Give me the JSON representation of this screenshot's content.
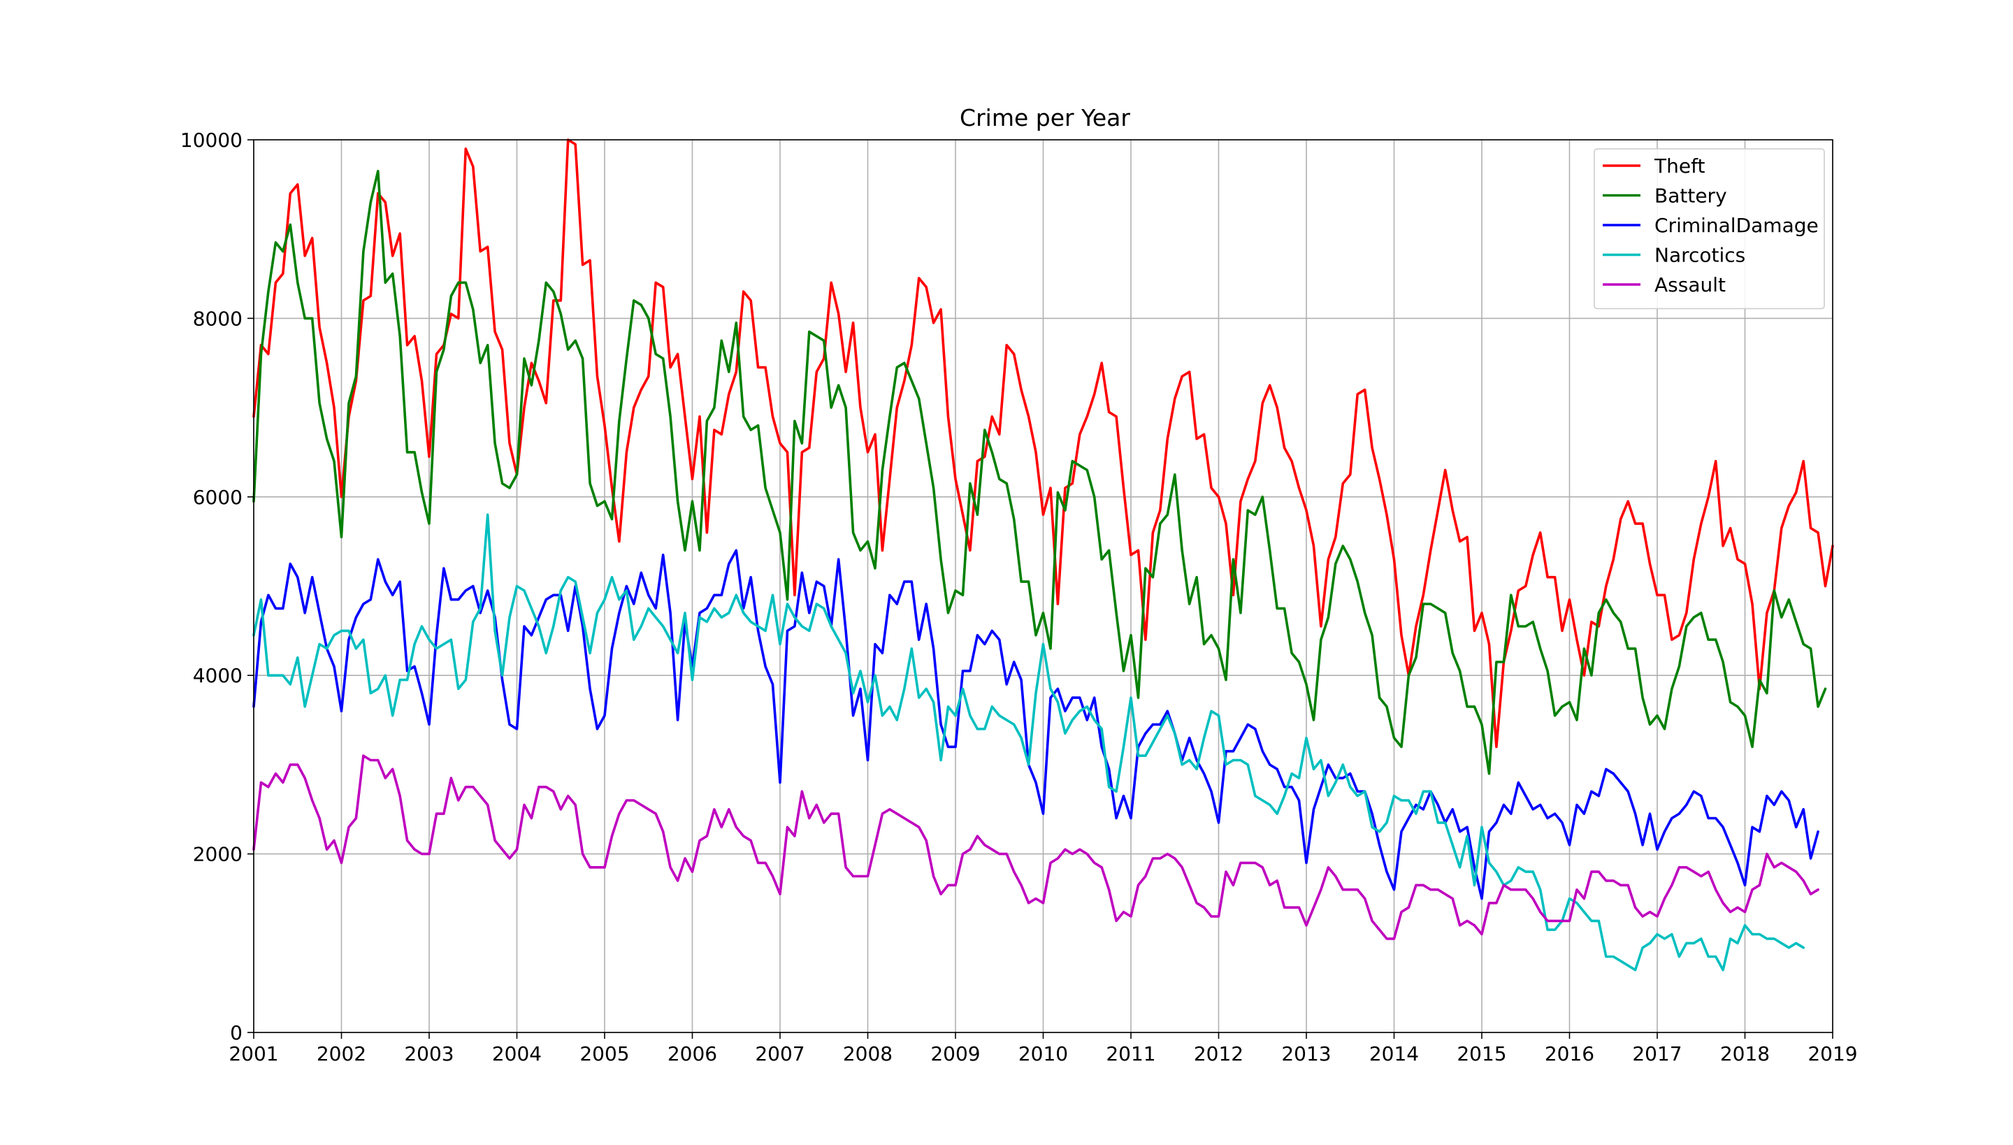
{
  "chart_data": {
    "type": "line",
    "title": "Crime per Year",
    "xlabel": "",
    "ylabel": "",
    "xlim": [
      2001,
      2019
    ],
    "ylim": [
      0,
      10000
    ],
    "x_ticks": [
      "2001",
      "2002",
      "2003",
      "2004",
      "2005",
      "2006",
      "2007",
      "2008",
      "2009",
      "2010",
      "2011",
      "2012",
      "2013",
      "2014",
      "2015",
      "2016",
      "2017",
      "2018",
      "2019"
    ],
    "y_ticks": [
      "0",
      "2000",
      "4000",
      "6000",
      "8000",
      "10000"
    ],
    "grid": true,
    "legend_position": "top-right",
    "x_start": "2001-01",
    "series": [
      {
        "name": "Theft",
        "color": "#ff0000",
        "values": [
          6900,
          7700,
          7600,
          8400,
          8500,
          9400,
          9500,
          8700,
          8900,
          7900,
          7500,
          7000,
          6000,
          6900,
          7300,
          8200,
          8250,
          9400,
          9300,
          8700,
          8950,
          7700,
          7800,
          7300,
          6450,
          7600,
          7700,
          8050,
          8000,
          9900,
          9700,
          8750,
          8800,
          7850,
          7650,
          6600,
          6250,
          7000,
          7500,
          7300,
          7050,
          8200,
          8200,
          10000,
          9950,
          8600,
          8650,
          7350,
          6800,
          6100,
          5500,
          6500,
          7000,
          7200,
          7350,
          8400,
          8350,
          7450,
          7600,
          6900,
          6200,
          6900,
          5600,
          6750,
          6700,
          7150,
          7400,
          8300,
          8200,
          7450,
          7450,
          6900,
          6600,
          6500,
          4900,
          6500,
          6550,
          7400,
          7550,
          8400,
          8050,
          7400,
          7950,
          7000,
          6500,
          6700,
          5400,
          6200,
          7000,
          7300,
          7700,
          8450,
          8350,
          7950,
          8100,
          6900,
          6200,
          5800,
          5400,
          6400,
          6450,
          6900,
          6700,
          7700,
          7600,
          7200,
          6900,
          6500,
          5800,
          6100,
          4800,
          6100,
          6150,
          6700,
          6900,
          7150,
          7500,
          6950,
          6900,
          6100,
          5350,
          5400,
          4400,
          5600,
          5850,
          6650,
          7100,
          7350,
          7400,
          6650,
          6700,
          6100,
          6000,
          5700,
          4900,
          5950,
          6200,
          6400,
          7050,
          7250,
          7000,
          6550,
          6400,
          6100,
          5850,
          5450,
          4550,
          5300,
          5550,
          6150,
          6250,
          7150,
          7200,
          6550,
          6200,
          5800,
          5300,
          4450,
          4000,
          4550,
          4900,
          5400,
          5850,
          6300,
          5850,
          5500,
          5550,
          4500,
          4700,
          4350,
          3200,
          4150,
          4500,
          4950,
          5000,
          5350,
          5600,
          5100,
          5100,
          4500,
          4850,
          4400,
          4000,
          4600,
          4550,
          5000,
          5300,
          5750,
          5950,
          5700,
          5700,
          5250,
          4900,
          4900,
          4400,
          4450,
          4700,
          5300,
          5700,
          6000,
          6400,
          5450,
          5650,
          5300,
          5250,
          4800,
          3850,
          4700,
          4950,
          5650,
          5900,
          6050,
          6400,
          5650,
          5600,
          5000,
          5450
        ]
      },
      {
        "name": "Battery",
        "color": "#008000",
        "values": [
          5950,
          7600,
          8300,
          8850,
          8750,
          9050,
          8400,
          8000,
          8000,
          7050,
          6650,
          6400,
          5550,
          7050,
          7350,
          8750,
          9300,
          9650,
          8400,
          8500,
          7800,
          6500,
          6500,
          6050,
          5700,
          7400,
          7650,
          8250,
          8400,
          8400,
          8100,
          7500,
          7700,
          6600,
          6150,
          6100,
          6250,
          7550,
          7250,
          7750,
          8400,
          8300,
          8050,
          7650,
          7750,
          7550,
          6150,
          5900,
          5950,
          5750,
          6850,
          7550,
          8200,
          8150,
          8000,
          7600,
          7550,
          6900,
          5950,
          5400,
          5950,
          5400,
          6850,
          7000,
          7750,
          7400,
          7950,
          6900,
          6750,
          6800,
          6100,
          5850,
          5600,
          4850,
          6850,
          6600,
          7850,
          7800,
          7750,
          7000,
          7250,
          7000,
          5600,
          5400,
          5500,
          5200,
          6300,
          6900,
          7450,
          7500,
          7300,
          7100,
          6600,
          6100,
          5300,
          4700,
          4950,
          4900,
          6150,
          5800,
          6750,
          6500,
          6200,
          6150,
          5750,
          5050,
          5050,
          4450,
          4700,
          4300,
          6050,
          5850,
          6400,
          6350,
          6300,
          6000,
          5300,
          5400,
          4700,
          4050,
          4450,
          3750,
          5200,
          5100,
          5700,
          5800,
          6250,
          5400,
          4800,
          5100,
          4350,
          4450,
          4300,
          3950,
          5300,
          4700,
          5850,
          5800,
          6000,
          5400,
          4750,
          4750,
          4250,
          4150,
          3900,
          3500,
          4400,
          4650,
          5250,
          5450,
          5300,
          5050,
          4700,
          4450,
          3750,
          3650,
          3300,
          3200,
          4000,
          4200,
          4800,
          4800,
          4750,
          4700,
          4250,
          4050,
          3650,
          3650,
          3450,
          2900,
          4150,
          4150,
          4900,
          4550,
          4550,
          4600,
          4300,
          4050,
          3550,
          3650,
          3700,
          3500,
          4300,
          4000,
          4700,
          4850,
          4700,
          4600,
          4300,
          4300,
          3750,
          3450,
          3550,
          3400,
          3850,
          4100,
          4550,
          4650,
          4700,
          4400,
          4400,
          4150,
          3700,
          3650,
          3550,
          3200,
          3950,
          3800,
          4950,
          4650,
          4850,
          4600,
          4350,
          4300,
          3650,
          3850
        ]
      },
      {
        "name": "CriminalDamage",
        "color": "#0000ff",
        "values": [
          3650,
          4600,
          4900,
          4750,
          4750,
          5250,
          5100,
          4700,
          5100,
          4700,
          4300,
          4100,
          3600,
          4400,
          4650,
          4800,
          4850,
          5300,
          5050,
          4900,
          5050,
          4050,
          4100,
          3800,
          3450,
          4450,
          5200,
          4850,
          4850,
          4950,
          5000,
          4700,
          4950,
          4650,
          3950,
          3450,
          3400,
          4550,
          4450,
          4650,
          4850,
          4900,
          4900,
          4500,
          5000,
          4550,
          3850,
          3400,
          3550,
          4300,
          4700,
          5000,
          4800,
          5150,
          4900,
          4750,
          5350,
          4700,
          3500,
          4600,
          4100,
          4700,
          4750,
          4900,
          4900,
          5250,
          5400,
          4750,
          5100,
          4500,
          4100,
          3900,
          2800,
          4500,
          4550,
          5150,
          4700,
          5050,
          5000,
          4550,
          5300,
          4500,
          3550,
          3850,
          3050,
          4350,
          4250,
          4900,
          4800,
          5050,
          5050,
          4400,
          4800,
          4300,
          3450,
          3200,
          3200,
          4050,
          4050,
          4450,
          4350,
          4500,
          4400,
          3900,
          4150,
          3950,
          3000,
          2800,
          2450,
          3750,
          3850,
          3600,
          3750,
          3750,
          3500,
          3750,
          3200,
          2950,
          2400,
          2650,
          2400,
          3200,
          3350,
          3450,
          3450,
          3600,
          3350,
          3050,
          3300,
          3050,
          2900,
          2700,
          2350,
          3150,
          3150,
          3300,
          3450,
          3400,
          3150,
          3000,
          2950,
          2750,
          2750,
          2600,
          1900,
          2500,
          2750,
          3000,
          2850,
          2850,
          2900,
          2700,
          2700,
          2450,
          2100,
          1800,
          1600,
          2250,
          2400,
          2550,
          2500,
          2700,
          2550,
          2350,
          2500,
          2250,
          2300,
          1850,
          1500,
          2250,
          2350,
          2550,
          2450,
          2800,
          2650,
          2500,
          2550,
          2400,
          2450,
          2350,
          2100,
          2550,
          2450,
          2700,
          2650,
          2950,
          2900,
          2800,
          2700,
          2450,
          2100,
          2450,
          2050,
          2250,
          2400,
          2450,
          2550,
          2700,
          2650,
          2400,
          2400,
          2300,
          2100,
          1900,
          1650,
          2300,
          2250,
          2650,
          2550,
          2700,
          2600,
          2300,
          2500,
          1950,
          2250
        ]
      },
      {
        "name": "Narcotics",
        "color": "#00bfbf",
        "values": [
          4450,
          4850,
          4000,
          4000,
          4000,
          3900,
          4200,
          3650,
          4000,
          4350,
          4300,
          4450,
          4500,
          4500,
          4300,
          4400,
          3800,
          3850,
          4000,
          3550,
          3950,
          3950,
          4350,
          4550,
          4400,
          4300,
          4350,
          4400,
          3850,
          3950,
          4600,
          4750,
          5800,
          4500,
          4000,
          4650,
          5000,
          4950,
          4750,
          4550,
          4250,
          4550,
          4950,
          5100,
          5050,
          4650,
          4250,
          4700,
          4850,
          5100,
          4850,
          4950,
          4400,
          4550,
          4750,
          4650,
          4550,
          4400,
          4250,
          4700,
          3950,
          4650,
          4600,
          4750,
          4650,
          4700,
          4900,
          4700,
          4600,
          4550,
          4500,
          4900,
          4350,
          4800,
          4650,
          4550,
          4500,
          4800,
          4750,
          4550,
          4400,
          4250,
          3800,
          4050,
          3700,
          4000,
          3550,
          3650,
          3500,
          3850,
          4300,
          3750,
          3850,
          3700,
          3050,
          3650,
          3550,
          3850,
          3550,
          3400,
          3400,
          3650,
          3550,
          3500,
          3450,
          3300,
          3000,
          3800,
          4350,
          3850,
          3700,
          3350,
          3500,
          3600,
          3650,
          3500,
          3400,
          2750,
          2700,
          3200,
          3750,
          3100,
          3100,
          3250,
          3400,
          3550,
          3350,
          3000,
          3050,
          2950,
          3300,
          3600,
          3550,
          3000,
          3050,
          3050,
          3000,
          2650,
          2600,
          2550,
          2450,
          2650,
          2900,
          2850,
          3300,
          2950,
          3050,
          2650,
          2800,
          3000,
          2750,
          2650,
          2700,
          2300,
          2250,
          2350,
          2650,
          2600,
          2600,
          2450,
          2700,
          2700,
          2350,
          2350,
          2100,
          1850,
          2200,
          1650,
          2300,
          1900,
          1800,
          1650,
          1700,
          1850,
          1800,
          1800,
          1600,
          1150,
          1150,
          1250,
          1500,
          1450,
          1350,
          1250,
          1250,
          850,
          850,
          800,
          750,
          700,
          950,
          1000,
          1100,
          1050,
          1100,
          850,
          1000,
          1000,
          1050,
          850,
          850,
          700,
          1050,
          1000,
          1200,
          1100,
          1100,
          1050,
          1050,
          1000,
          950,
          1000,
          950
        ]
      },
      {
        "name": "Assault",
        "color": "#bf00bf",
        "values": [
          2050,
          2800,
          2750,
          2900,
          2800,
          3000,
          3000,
          2850,
          2600,
          2400,
          2050,
          2150,
          1900,
          2300,
          2400,
          3100,
          3050,
          3050,
          2850,
          2950,
          2650,
          2150,
          2050,
          2000,
          2000,
          2450,
          2450,
          2850,
          2600,
          2750,
          2750,
          2650,
          2550,
          2150,
          2050,
          1950,
          2050,
          2550,
          2400,
          2750,
          2750,
          2700,
          2500,
          2650,
          2550,
          2000,
          1850,
          1850,
          1850,
          2200,
          2450,
          2600,
          2600,
          2550,
          2500,
          2450,
          2250,
          1850,
          1700,
          1950,
          1800,
          2150,
          2200,
          2500,
          2300,
          2500,
          2300,
          2200,
          2150,
          1900,
          1900,
          1750,
          1550,
          2300,
          2200,
          2700,
          2400,
          2550,
          2350,
          2450,
          2450,
          1850,
          1750,
          1750,
          1750,
          2100,
          2450,
          2500,
          2450,
          2400,
          2350,
          2300,
          2150,
          1750,
          1550,
          1650,
          1650,
          2000,
          2050,
          2200,
          2100,
          2050,
          2000,
          2000,
          1800,
          1650,
          1450,
          1500,
          1450,
          1900,
          1950,
          2050,
          2000,
          2050,
          2000,
          1900,
          1850,
          1600,
          1250,
          1350,
          1300,
          1650,
          1750,
          1950,
          1950,
          2000,
          1950,
          1850,
          1650,
          1450,
          1400,
          1300,
          1300,
          1800,
          1650,
          1900,
          1900,
          1900,
          1850,
          1650,
          1700,
          1400,
          1400,
          1400,
          1200,
          1400,
          1600,
          1850,
          1750,
          1600,
          1600,
          1600,
          1500,
          1250,
          1150,
          1050,
          1050,
          1350,
          1400,
          1650,
          1650,
          1600,
          1600,
          1550,
          1500,
          1200,
          1250,
          1200,
          1100,
          1450,
          1450,
          1650,
          1600,
          1600,
          1600,
          1500,
          1350,
          1250,
          1250,
          1250,
          1250,
          1600,
          1500,
          1800,
          1800,
          1700,
          1700,
          1650,
          1650,
          1400,
          1300,
          1350,
          1300,
          1500,
          1650,
          1850,
          1850,
          1800,
          1750,
          1800,
          1600,
          1450,
          1350,
          1400,
          1350,
          1600,
          1650,
          2000,
          1850,
          1900,
          1850,
          1800,
          1700,
          1550,
          1600
        ]
      }
    ]
  }
}
